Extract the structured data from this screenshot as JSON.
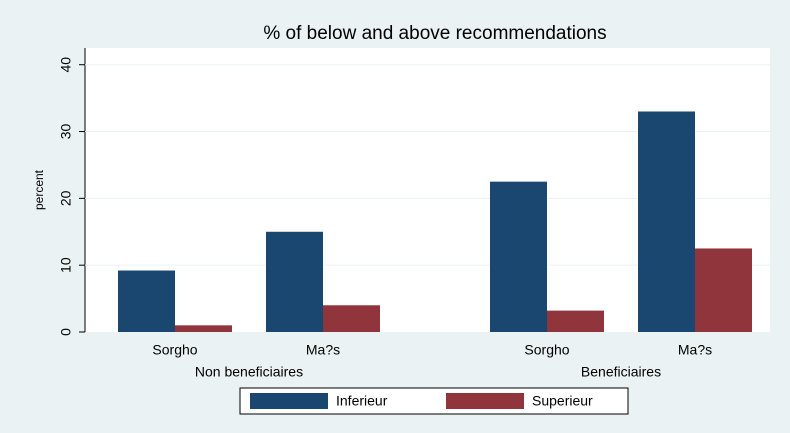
{
  "chart_data": {
    "type": "bar",
    "title": "% of below and above recommendations",
    "y_label": "percent",
    "groups": [
      "Non beneficiaires",
      "Beneficiaires"
    ],
    "categories": [
      "Sorgho",
      "Ma?s",
      "Sorgho",
      "Ma?s"
    ],
    "series": [
      {
        "name": "Inferieur",
        "color": "#1a476f",
        "values": [
          9.2,
          15,
          22.5,
          33
        ]
      },
      {
        "name": "Superieur",
        "color": "#90353b",
        "values": [
          1,
          4,
          3.2,
          12.5
        ]
      }
    ],
    "ylim": [
      0,
      42.5
    ],
    "yticks": [
      0,
      10,
      20,
      30,
      40
    ],
    "grid": true,
    "legend": "bottom"
  }
}
